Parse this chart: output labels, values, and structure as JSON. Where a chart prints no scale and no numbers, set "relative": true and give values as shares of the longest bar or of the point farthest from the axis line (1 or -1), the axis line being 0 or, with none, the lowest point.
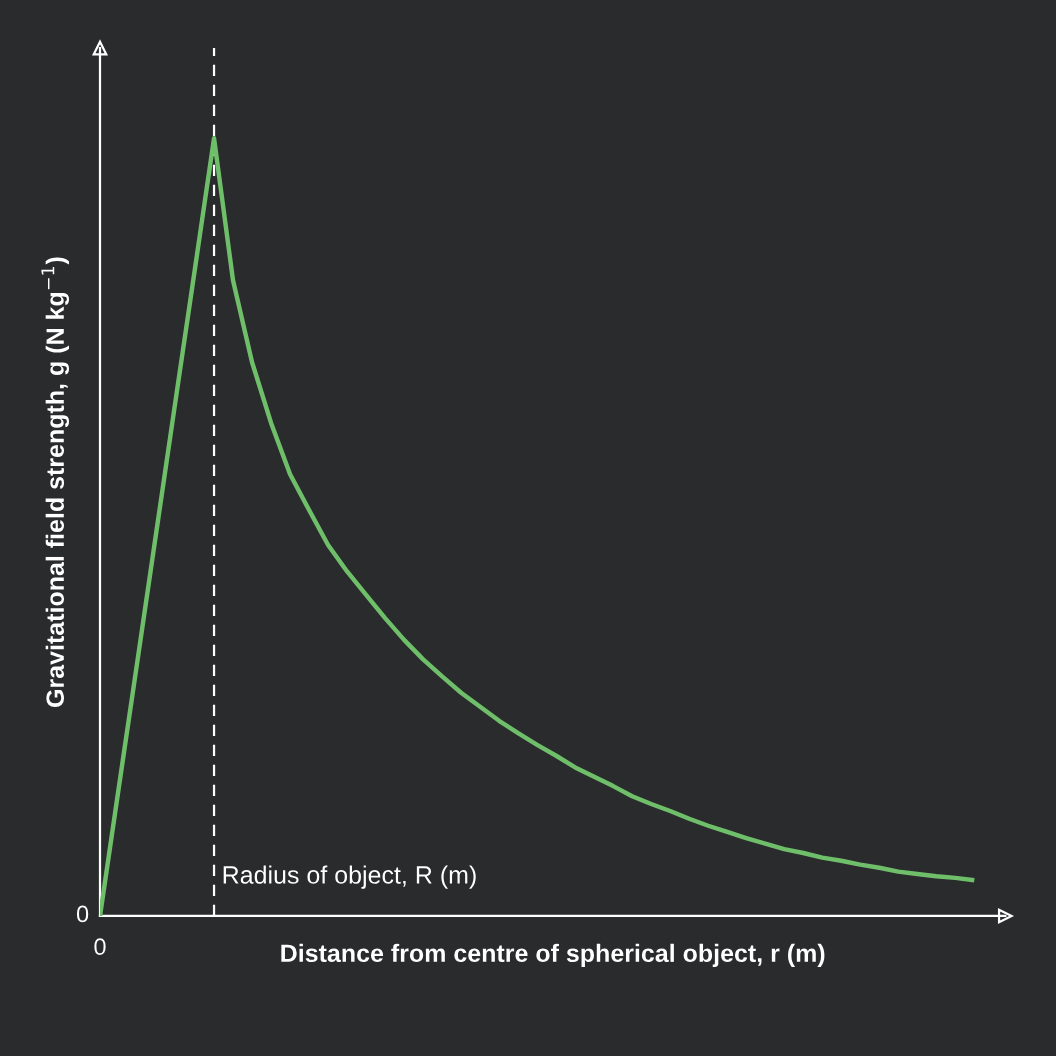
{
  "chart_data": {
    "type": "line",
    "relative": true,
    "xlabel": "Distance from centre of spherical object, r (m)",
    "ylabel": "Gravitational field strength, g (N kg$^{−1}$)",
    "categories": [
      null,
      null,
      null,
      null,
      null,
      null,
      null,
      null,
      null,
      null,
      null,
      null,
      null,
      null,
      null,
      null,
      null,
      null,
      null,
      null,
      null,
      null,
      null,
      null,
      null,
      null,
      null,
      null,
      null,
      null,
      null,
      null,
      null,
      null,
      null,
      null,
      null,
      null,
      null,
      null,
      null,
      null,
      null,
      null,
      null,
      null,
      null
    ],
    "series": [
      {
        "color": "#6fbf6a",
        "values": [
          0,
          0.167,
          0.333,
          0.5,
          0.667,
          0.833,
          1,
          0.817,
          0.712,
          0.634,
          0.568,
          0.522,
          0.477,
          0.443,
          0.413,
          0.383,
          0.355,
          0.33,
          0.308,
          0.287,
          0.269,
          0.251,
          0.235,
          0.22,
          0.206,
          0.191,
          0.179,
          0.167,
          0.154,
          0.144,
          0.135,
          0.125,
          0.116,
          0.108,
          0.1,
          0.093,
          0.086,
          0.081,
          0.075,
          0.071,
          0.066,
          0.062,
          0.057,
          0.054,
          0.051,
          0.049,
          0.046
        ]
      }
    ],
    "annotations": [
      "0",
      "0",
      "Radius of object, R (m)"
    ],
    "grid": false,
    "legend": false,
    "marker": "none",
    "line_style": "solid"
  }
}
